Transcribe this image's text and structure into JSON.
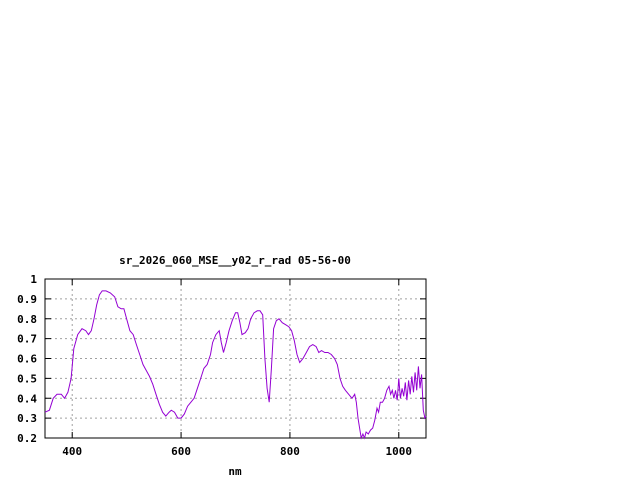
{
  "chart_data": {
    "type": "line",
    "title": "sr_2026_060_MSE__y02_r_rad 05-56-00",
    "xlabel": "nm",
    "ylabel": "",
    "xlim": [
      350,
      1050
    ],
    "ylim": [
      0.2,
      1.0
    ],
    "x_ticks": [
      400,
      600,
      800,
      1000
    ],
    "y_ticks": [
      0.2,
      0.3,
      0.4,
      0.5,
      0.6,
      0.7,
      0.8,
      0.9,
      1.0
    ],
    "y_tick_labels": [
      "0.2",
      "0.3",
      "0.4",
      "0.5",
      "0.6",
      "0.7",
      "0.8",
      "0.9",
      "1"
    ],
    "grid": true,
    "legend": "none",
    "series": [
      {
        "color": "#9400d3",
        "points": [
          [
            350,
            0.33
          ],
          [
            358,
            0.34
          ],
          [
            365,
            0.4
          ],
          [
            372,
            0.42
          ],
          [
            380,
            0.42
          ],
          [
            386,
            0.4
          ],
          [
            392,
            0.43
          ],
          [
            398,
            0.5
          ],
          [
            403,
            0.65
          ],
          [
            410,
            0.72
          ],
          [
            418,
            0.75
          ],
          [
            425,
            0.74
          ],
          [
            430,
            0.72
          ],
          [
            435,
            0.74
          ],
          [
            440,
            0.8
          ],
          [
            445,
            0.87
          ],
          [
            450,
            0.92
          ],
          [
            455,
            0.94
          ],
          [
            462,
            0.94
          ],
          [
            470,
            0.93
          ],
          [
            478,
            0.91
          ],
          [
            484,
            0.86
          ],
          [
            490,
            0.85
          ],
          [
            495,
            0.85
          ],
          [
            500,
            0.8
          ],
          [
            506,
            0.74
          ],
          [
            512,
            0.72
          ],
          [
            518,
            0.67
          ],
          [
            524,
            0.62
          ],
          [
            530,
            0.57
          ],
          [
            536,
            0.54
          ],
          [
            542,
            0.51
          ],
          [
            548,
            0.47
          ],
          [
            554,
            0.42
          ],
          [
            560,
            0.37
          ],
          [
            566,
            0.33
          ],
          [
            572,
            0.31
          ],
          [
            578,
            0.33
          ],
          [
            582,
            0.34
          ],
          [
            588,
            0.33
          ],
          [
            594,
            0.3
          ],
          [
            600,
            0.3
          ],
          [
            606,
            0.32
          ],
          [
            612,
            0.36
          ],
          [
            618,
            0.38
          ],
          [
            624,
            0.4
          ],
          [
            630,
            0.45
          ],
          [
            636,
            0.5
          ],
          [
            642,
            0.55
          ],
          [
            648,
            0.57
          ],
          [
            654,
            0.62
          ],
          [
            658,
            0.68
          ],
          [
            664,
            0.72
          ],
          [
            670,
            0.74
          ],
          [
            674,
            0.68
          ],
          [
            678,
            0.63
          ],
          [
            683,
            0.68
          ],
          [
            688,
            0.74
          ],
          [
            694,
            0.79
          ],
          [
            700,
            0.83
          ],
          [
            704,
            0.83
          ],
          [
            708,
            0.78
          ],
          [
            712,
            0.72
          ],
          [
            718,
            0.73
          ],
          [
            723,
            0.75
          ],
          [
            728,
            0.8
          ],
          [
            734,
            0.83
          ],
          [
            740,
            0.84
          ],
          [
            745,
            0.84
          ],
          [
            750,
            0.82
          ],
          [
            754,
            0.6
          ],
          [
            758,
            0.45
          ],
          [
            762,
            0.38
          ],
          [
            766,
            0.55
          ],
          [
            770,
            0.75
          ],
          [
            775,
            0.79
          ],
          [
            780,
            0.8
          ],
          [
            786,
            0.78
          ],
          [
            792,
            0.77
          ],
          [
            798,
            0.76
          ],
          [
            803,
            0.74
          ],
          [
            808,
            0.69
          ],
          [
            813,
            0.62
          ],
          [
            818,
            0.58
          ],
          [
            824,
            0.6
          ],
          [
            830,
            0.63
          ],
          [
            836,
            0.66
          ],
          [
            842,
            0.67
          ],
          [
            848,
            0.66
          ],
          [
            853,
            0.63
          ],
          [
            858,
            0.64
          ],
          [
            864,
            0.63
          ],
          [
            870,
            0.63
          ],
          [
            876,
            0.62
          ],
          [
            882,
            0.6
          ],
          [
            887,
            0.57
          ],
          [
            892,
            0.5
          ],
          [
            897,
            0.46
          ],
          [
            902,
            0.44
          ],
          [
            908,
            0.42
          ],
          [
            914,
            0.4
          ],
          [
            919,
            0.42
          ],
          [
            922,
            0.38
          ],
          [
            925,
            0.3
          ],
          [
            928,
            0.25
          ],
          [
            931,
            0.2
          ],
          [
            934,
            0.22
          ],
          [
            937,
            0.2
          ],
          [
            940,
            0.23
          ],
          [
            944,
            0.22
          ],
          [
            948,
            0.24
          ],
          [
            952,
            0.25
          ],
          [
            956,
            0.29
          ],
          [
            960,
            0.35
          ],
          [
            963,
            0.33
          ],
          [
            966,
            0.38
          ],
          [
            970,
            0.38
          ],
          [
            974,
            0.4
          ],
          [
            978,
            0.44
          ],
          [
            982,
            0.46
          ],
          [
            985,
            0.42
          ],
          [
            988,
            0.44
          ],
          [
            991,
            0.4
          ],
          [
            994,
            0.44
          ],
          [
            997,
            0.39
          ],
          [
            1000,
            0.5
          ],
          [
            1003,
            0.4
          ],
          [
            1006,
            0.45
          ],
          [
            1009,
            0.41
          ],
          [
            1012,
            0.48
          ],
          [
            1015,
            0.39
          ],
          [
            1018,
            0.49
          ],
          [
            1021,
            0.42
          ],
          [
            1024,
            0.51
          ],
          [
            1027,
            0.43
          ],
          [
            1030,
            0.53
          ],
          [
            1033,
            0.44
          ],
          [
            1036,
            0.56
          ],
          [
            1039,
            0.45
          ],
          [
            1042,
            0.52
          ],
          [
            1045,
            0.34
          ],
          [
            1048,
            0.3
          ],
          [
            1050,
            0.31
          ]
        ]
      }
    ]
  }
}
